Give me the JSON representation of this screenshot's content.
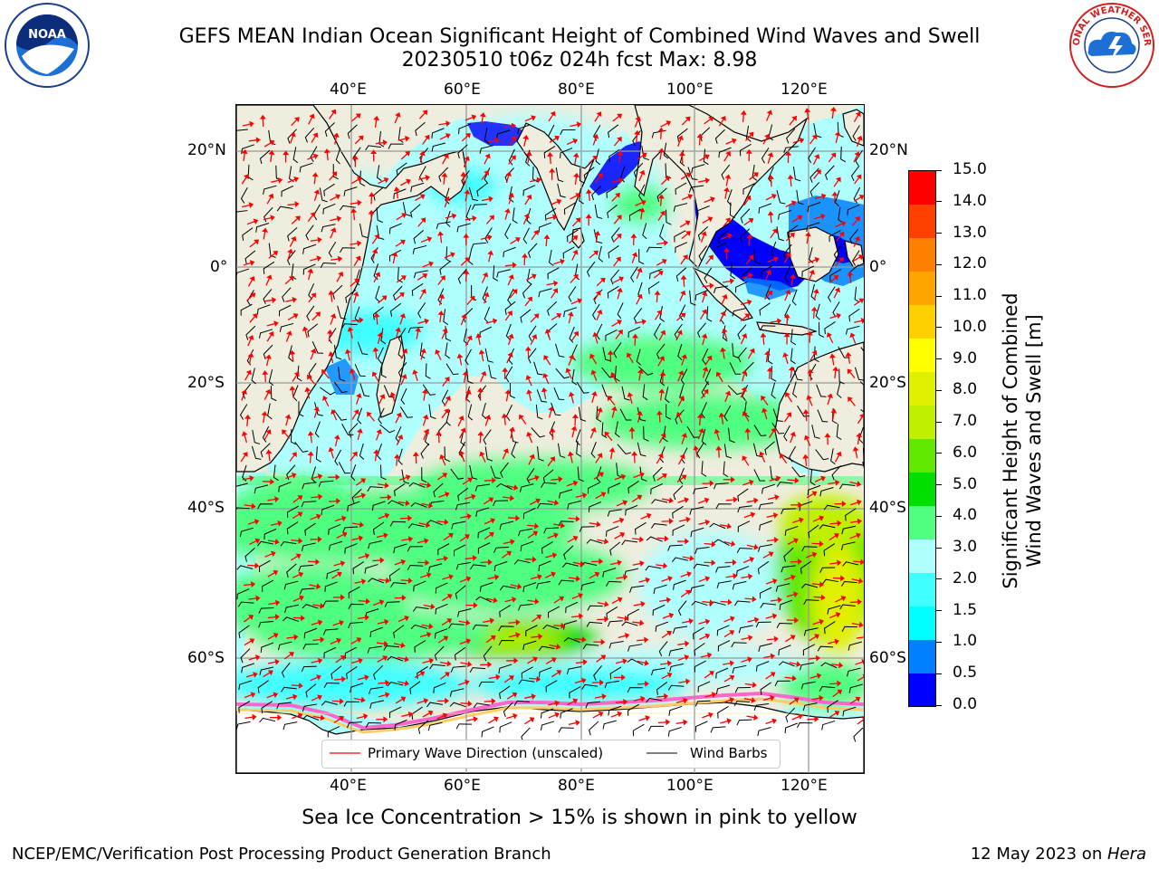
{
  "title": {
    "line1": "GEFS MEAN Indian Ocean Significant Height of Combined Wind Waves and Swell",
    "line2": "20230510 t06z 024h fcst   Max: 8.98"
  },
  "logos": {
    "left_icon": "noaa-logo-icon",
    "left_text": "NOAA",
    "right_icon": "nws-logo-icon",
    "right_text": "NATIONAL WEATHER SERVICE"
  },
  "map": {
    "lon_ticks_top": [
      "40°E",
      "60°E",
      "80°E",
      "100°E",
      "120°E"
    ],
    "lon_ticks_bottom": [
      "40°E",
      "60°E",
      "80°E",
      "100°E",
      "120°E"
    ],
    "lat_ticks_left": [
      "20°N",
      "0°",
      "20°S",
      "40°S",
      "60°S"
    ],
    "lat_ticks_right": [
      "20°N",
      "0°",
      "20°S",
      "40°S",
      "60°S"
    ],
    "land_color": "#efedde",
    "barb_color": "#000000",
    "arrow_color": "#ff0000"
  },
  "legend": {
    "arrow_label": "Primary Wave Direction (unscaled)",
    "barb_label": "Wind Barbs"
  },
  "colorbar": {
    "label_line1": "Significant Height of Combined",
    "label_line2": "Wind Waves and Swell [m]",
    "ticks": [
      "0.0",
      "0.5",
      "1.0",
      "1.5",
      "2.0",
      "3.0",
      "4.0",
      "5.0",
      "6.0",
      "7.0",
      "8.0",
      "9.0",
      "10.0",
      "11.0",
      "12.0",
      "13.0",
      "14.0",
      "15.0"
    ],
    "colors": [
      "#0000ff",
      "#0080ff",
      "#00ffff",
      "#40ffff",
      "#b0ffff",
      "#50ff80",
      "#00e000",
      "#60e800",
      "#c0f000",
      "#e0f000",
      "#ffff00",
      "#ffd000",
      "#ffa500",
      "#ff8000",
      "#ff4000",
      "#ff0000"
    ]
  },
  "sea_ice_note": "Sea Ice Concentration > 15% is shown in pink to yellow",
  "footer": {
    "left": "NCEP/EMC/Verification Post Processing Product Generation Branch",
    "right_date": "12 May 2023 on ",
    "right_host": "Hera"
  }
}
